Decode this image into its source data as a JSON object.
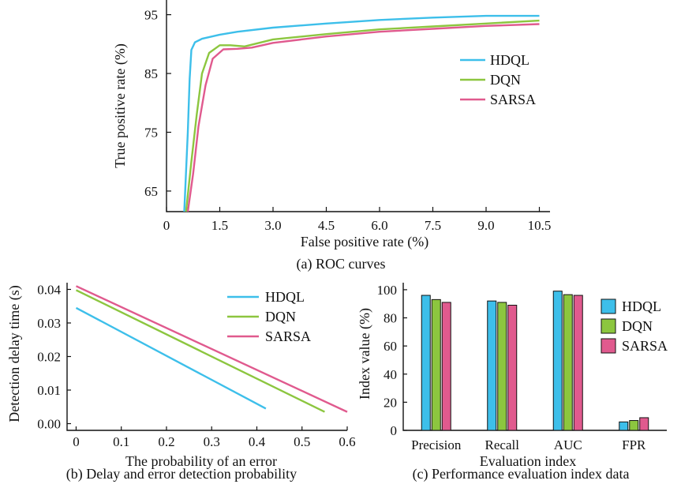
{
  "chart_data": [
    {
      "id": "roc",
      "type": "line",
      "caption": "(a) ROC curves",
      "xlabel": "False positive rate (%)",
      "ylabel": "True positive rate (%)",
      "xlim": [
        0,
        10.8
      ],
      "ylim": [
        61.5,
        97.5
      ],
      "xticks": [
        "0",
        "1.5",
        "3.0",
        "4.5",
        "6.0",
        "7.5",
        "9.0",
        "10.5"
      ],
      "yticks": [
        "65",
        "75",
        "85",
        "95"
      ],
      "legend_position": "right",
      "series": [
        {
          "name": "HDQL",
          "color": "#3dbfea",
          "points": [
            [
              0.5,
              61.5
            ],
            [
              0.6,
              75
            ],
            [
              0.65,
              84
            ],
            [
              0.7,
              89
            ],
            [
              0.8,
              90.3
            ],
            [
              1.0,
              90.9
            ],
            [
              1.5,
              91.6
            ],
            [
              2.0,
              92.1
            ],
            [
              3.0,
              92.8
            ],
            [
              4.5,
              93.5
            ],
            [
              6.0,
              94.1
            ],
            [
              7.5,
              94.5
            ],
            [
              9.0,
              94.8
            ],
            [
              10.5,
              94.8
            ]
          ]
        },
        {
          "name": "DQN",
          "color": "#8cc63f",
          "points": [
            [
              0.55,
              61.5
            ],
            [
              0.7,
              70
            ],
            [
              0.85,
              78
            ],
            [
              1.0,
              85
            ],
            [
              1.2,
              88.5
            ],
            [
              1.5,
              89.8
            ],
            [
              1.8,
              89.8
            ],
            [
              2.2,
              89.6
            ],
            [
              3.0,
              90.8
            ],
            [
              4.5,
              91.7
            ],
            [
              6.0,
              92.5
            ],
            [
              7.5,
              93.0
            ],
            [
              9.0,
              93.5
            ],
            [
              10.5,
              94.0
            ]
          ]
        },
        {
          "name": "SARSA",
          "color": "#e05a8e",
          "points": [
            [
              0.6,
              61.5
            ],
            [
              0.75,
              68
            ],
            [
              0.9,
              76
            ],
            [
              1.1,
              83
            ],
            [
              1.3,
              87.5
            ],
            [
              1.6,
              89.1
            ],
            [
              2.0,
              89.2
            ],
            [
              2.4,
              89.4
            ],
            [
              3.0,
              90.2
            ],
            [
              4.5,
              91.3
            ],
            [
              6.0,
              92.1
            ],
            [
              7.5,
              92.6
            ],
            [
              9.0,
              93.1
            ],
            [
              10.5,
              93.4
            ]
          ]
        }
      ]
    },
    {
      "id": "delay",
      "type": "line",
      "caption": "(b) Delay and error detection probability",
      "xlabel": "The probability of an error",
      "ylabel": "Detection delay time (s)",
      "xlim": [
        -0.02,
        0.6
      ],
      "ylim": [
        -0.002,
        0.042
      ],
      "xticks": [
        "0",
        "0.1",
        "0.2",
        "0.3",
        "0.4",
        "0.5",
        "0.6"
      ],
      "yticks": [
        "0.00",
        "0.01",
        "0.02",
        "0.03",
        "0.04"
      ],
      "legend_position": "top-right",
      "series": [
        {
          "name": "HDQL",
          "color": "#3dbfea",
          "points": [
            [
              0,
              0.0345
            ],
            [
              0.42,
              0.0045
            ]
          ]
        },
        {
          "name": "DQN",
          "color": "#8cc63f",
          "points": [
            [
              0,
              0.0398
            ],
            [
              0.55,
              0.0035
            ]
          ]
        },
        {
          "name": "SARSA",
          "color": "#e05a8e",
          "points": [
            [
              0,
              0.041
            ],
            [
              0.6,
              0.0035
            ]
          ]
        }
      ]
    },
    {
      "id": "perf",
      "type": "bar",
      "caption": "(c) Performance evaluation index data",
      "xlabel": "Evaluation index",
      "ylabel": "Index value (%)",
      "ylim": [
        0,
        105
      ],
      "yticks": [
        "0",
        "20",
        "40",
        "60",
        "80",
        "100"
      ],
      "categories": [
        "Precision",
        "Recall",
        "AUC",
        "FPR"
      ],
      "legend_position": "top-right",
      "series": [
        {
          "name": "HDQL",
          "color": "#3dbfea",
          "values": [
            96,
            92,
            99,
            6
          ]
        },
        {
          "name": "DQN",
          "color": "#8cc63f",
          "values": [
            93,
            91,
            96.5,
            7
          ]
        },
        {
          "name": "SARSA",
          "color": "#e05a8e",
          "values": [
            91,
            89,
            96,
            9
          ]
        }
      ]
    }
  ]
}
